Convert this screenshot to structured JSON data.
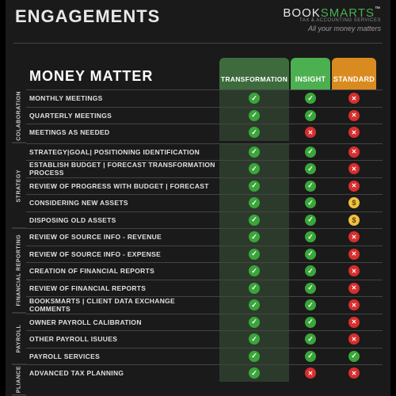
{
  "header": {
    "title": "ENGAGEMENTS",
    "logo_book": "BOOK",
    "logo_smarts": "SMARTS",
    "logo_sub": "TAX & ACCOUNTING SERVICES",
    "logo_tag": "All your money matters"
  },
  "table": {
    "heading": "MONEY MATTER",
    "plans": [
      {
        "label": "TRANSFORMATION",
        "bg": "#3d6b3d"
      },
      {
        "label": "INSIGHT",
        "bg": "#4caf50"
      },
      {
        "label": "STANDARD",
        "bg": "#d98b1f"
      }
    ],
    "groups": [
      {
        "label": "COLABORATION",
        "rows": [
          {
            "label": "MONTHLY MEETINGS",
            "v": [
              "check",
              "check",
              "cross"
            ]
          },
          {
            "label": "QUARTERLY MEETINGS",
            "v": [
              "check",
              "check",
              "cross"
            ]
          },
          {
            "label": "MEETINGS AS NEEDED",
            "v": [
              "check",
              "cross",
              "cross"
            ]
          }
        ]
      },
      {
        "label": "STRATEGY",
        "rows": [
          {
            "label": "STRATEGY|GOAL| POSITIONING IDENTIFICATION",
            "v": [
              "check",
              "check",
              "cross"
            ]
          },
          {
            "label": "ESTABLISH BUDGET | FORECAST TRANSFORMATION PROCESS",
            "v": [
              "check",
              "check",
              "cross"
            ]
          },
          {
            "label": "REVIEW OF PROGRESS WITH BUDGET | FORECAST",
            "v": [
              "check",
              "check",
              "cross"
            ]
          },
          {
            "label": "CONSIDERING NEW ASSETS",
            "v": [
              "check",
              "check",
              "dollar"
            ]
          },
          {
            "label": "DISPOSING OLD ASSETS",
            "v": [
              "check",
              "check",
              "dollar"
            ]
          }
        ]
      },
      {
        "label": "FINANCIAL REPORTING",
        "rows": [
          {
            "label": "REVIEW OF SOURCE INFO - REVENUE",
            "v": [
              "check",
              "check",
              "cross"
            ]
          },
          {
            "label": "REVIEW OF SOURCE INFO - EXPENSE",
            "v": [
              "check",
              "check",
              "cross"
            ]
          },
          {
            "label": "CREATION OF FINANCIAL REPORTS",
            "v": [
              "check",
              "check",
              "cross"
            ]
          },
          {
            "label": "REVIEW OF FINANCIAL REPORTS",
            "v": [
              "check",
              "check",
              "cross"
            ]
          },
          {
            "label": "BOOKSMARTS | CLIENT DATA EXCHANGE COMMENTS",
            "v": [
              "check",
              "check",
              "cross"
            ]
          }
        ]
      },
      {
        "label": "PAYROLL",
        "rows": [
          {
            "label": "OWNER PAYROLL CALIBRATION",
            "v": [
              "check",
              "check",
              "cross"
            ]
          },
          {
            "label": "OTHER PAYROLL ISUUES",
            "v": [
              "check",
              "check",
              "cross"
            ]
          },
          {
            "label": "PAYROLL SERVICES",
            "v": [
              "check",
              "check",
              "check"
            ]
          }
        ]
      },
      {
        "label": "PLIANCE",
        "rows": [
          {
            "label": "ADVANCED TAX PLANNING",
            "v": [
              "check",
              "cross",
              "cross"
            ]
          }
        ]
      }
    ]
  },
  "icon_styles": {
    "check": {
      "bg": "#3aa63a",
      "glyph": "✓"
    },
    "cross": {
      "bg": "#d82e2e",
      "glyph": "✕"
    },
    "dollar": {
      "bg": "#f0c040",
      "glyph": "$"
    }
  }
}
